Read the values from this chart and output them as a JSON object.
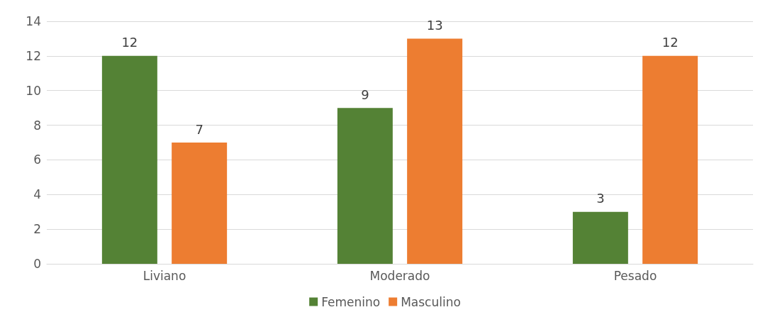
{
  "chart_data": {
    "type": "bar",
    "categories": [
      "Liviano",
      "Moderado",
      "Pesado"
    ],
    "series": [
      {
        "name": "Femenino",
        "color": "#548235",
        "values": [
          12,
          9,
          3
        ]
      },
      {
        "name": "Masculino",
        "color": "#ed7d31",
        "values": [
          7,
          13,
          12
        ]
      }
    ],
    "ylim": [
      0,
      14
    ],
    "yticks": [
      0,
      2,
      4,
      6,
      8,
      10,
      12,
      14
    ],
    "grid": "y",
    "legend": "bottom",
    "data_labels": true
  }
}
